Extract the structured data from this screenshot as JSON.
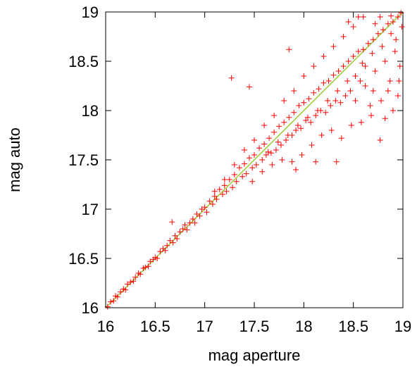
{
  "chart_data": {
    "type": "scatter",
    "xlabel": "mag aperture",
    "ylabel": "mag auto",
    "xlim": [
      16,
      19
    ],
    "ylim": [
      16,
      19
    ],
    "x_ticks": [
      "16",
      "16.5",
      "17",
      "17.5",
      "18",
      "18.5",
      "19"
    ],
    "y_ticks": [
      "16",
      "16.5",
      "17",
      "17.5",
      "18",
      "18.5",
      "19"
    ],
    "grid": false,
    "legend": "none",
    "marker": "+",
    "colors": {
      "points": "#ff0000",
      "reference_line": "#9acd32"
    },
    "reference_line": {
      "x": [
        16,
        19
      ],
      "y": [
        16,
        19
      ]
    },
    "series": [
      {
        "values": [
          [
            16.02,
            16.01
          ],
          [
            16.05,
            16.06
          ],
          [
            16.08,
            16.07
          ],
          [
            16.1,
            16.12
          ],
          [
            16.12,
            16.11
          ],
          [
            16.15,
            16.16
          ],
          [
            16.18,
            16.19
          ],
          [
            16.2,
            16.18
          ],
          [
            16.22,
            16.24
          ],
          [
            16.25,
            16.26
          ],
          [
            16.28,
            16.27
          ],
          [
            16.3,
            16.31
          ],
          [
            16.33,
            16.35
          ],
          [
            16.35,
            16.34
          ],
          [
            16.38,
            16.4
          ],
          [
            16.4,
            16.41
          ],
          [
            16.43,
            16.42
          ],
          [
            16.45,
            16.47
          ],
          [
            16.48,
            16.49
          ],
          [
            16.5,
            16.51
          ],
          [
            16.52,
            16.5
          ],
          [
            16.55,
            16.57
          ],
          [
            16.58,
            16.6
          ],
          [
            16.6,
            16.58
          ],
          [
            16.62,
            16.63
          ],
          [
            16.65,
            16.68
          ],
          [
            16.67,
            16.87
          ],
          [
            16.68,
            16.66
          ],
          [
            16.7,
            16.73
          ],
          [
            16.72,
            16.7
          ],
          [
            16.75,
            16.77
          ],
          [
            16.78,
            16.8
          ],
          [
            16.8,
            16.84
          ],
          [
            16.82,
            16.79
          ],
          [
            16.85,
            16.86
          ],
          [
            16.88,
            16.9
          ],
          [
            16.9,
            16.86
          ],
          [
            16.92,
            16.95
          ],
          [
            16.95,
            16.93
          ],
          [
            16.97,
            17.0
          ],
          [
            17.0,
            17.02
          ],
          [
            17.02,
            16.97
          ],
          [
            17.05,
            17.08
          ],
          [
            17.08,
            17.05
          ],
          [
            17.1,
            17.13
          ],
          [
            17.12,
            17.1
          ],
          [
            17.15,
            17.2
          ],
          [
            17.18,
            17.15
          ],
          [
            17.2,
            17.24
          ],
          [
            17.22,
            17.18
          ],
          [
            17.25,
            17.3
          ],
          [
            17.27,
            18.33
          ],
          [
            17.28,
            17.22
          ],
          [
            17.3,
            17.35
          ],
          [
            17.32,
            17.28
          ],
          [
            17.35,
            17.42
          ],
          [
            17.38,
            17.33
          ],
          [
            17.4,
            17.46
          ],
          [
            17.42,
            17.36
          ],
          [
            17.45,
            17.52
          ],
          [
            17.45,
            18.24
          ],
          [
            17.48,
            17.42
          ],
          [
            17.5,
            17.55
          ],
          [
            17.52,
            17.45
          ],
          [
            17.55,
            17.62
          ],
          [
            17.58,
            17.5
          ],
          [
            17.6,
            17.66
          ],
          [
            17.62,
            17.55
          ],
          [
            17.65,
            17.72
          ],
          [
            17.67,
            17.57
          ],
          [
            17.7,
            17.78
          ],
          [
            17.72,
            17.6
          ],
          [
            17.75,
            17.84
          ],
          [
            17.77,
            17.65
          ],
          [
            17.8,
            17.88
          ],
          [
            17.82,
            17.7
          ],
          [
            17.85,
            18.62
          ],
          [
            17.85,
            17.93
          ],
          [
            17.88,
            17.75
          ],
          [
            17.9,
            17.98
          ],
          [
            17.92,
            17.8
          ],
          [
            17.95,
            18.05
          ],
          [
            17.97,
            17.82
          ],
          [
            18.0,
            18.08
          ],
          [
            18.02,
            17.9
          ],
          [
            18.05,
            18.12
          ],
          [
            18.07,
            17.88
          ],
          [
            18.1,
            18.18
          ],
          [
            18.12,
            17.95
          ],
          [
            18.15,
            18.22
          ],
          [
            18.17,
            18.0
          ],
          [
            18.2,
            18.28
          ],
          [
            18.22,
            17.98
          ],
          [
            18.25,
            18.3
          ],
          [
            18.27,
            18.05
          ],
          [
            18.3,
            18.36
          ],
          [
            18.32,
            18.1
          ],
          [
            18.35,
            18.4
          ],
          [
            18.37,
            18.08
          ],
          [
            18.4,
            18.45
          ],
          [
            18.42,
            18.15
          ],
          [
            18.45,
            18.5
          ],
          [
            18.47,
            18.2
          ],
          [
            18.5,
            18.55
          ],
          [
            18.52,
            18.1
          ],
          [
            18.55,
            18.6
          ],
          [
            18.57,
            18.3
          ],
          [
            18.6,
            18.62
          ],
          [
            18.62,
            18.25
          ],
          [
            18.65,
            18.68
          ],
          [
            18.67,
            18.05
          ],
          [
            18.7,
            18.72
          ],
          [
            18.72,
            18.4
          ],
          [
            18.75,
            18.78
          ],
          [
            18.77,
            17.7
          ],
          [
            18.8,
            18.82
          ],
          [
            18.82,
            18.5
          ],
          [
            18.85,
            18.88
          ],
          [
            18.87,
            18.3
          ],
          [
            18.9,
            18.9
          ],
          [
            18.92,
            18.6
          ],
          [
            18.95,
            18.95
          ],
          [
            18.97,
            18.45
          ],
          [
            18.98,
            18.99
          ],
          [
            18.6,
            18.95
          ],
          [
            18.5,
            18.85
          ],
          [
            18.4,
            18.75
          ],
          [
            18.3,
            18.65
          ],
          [
            18.2,
            18.55
          ],
          [
            18.1,
            18.45
          ],
          [
            18.0,
            18.35
          ],
          [
            17.9,
            18.2
          ],
          [
            17.8,
            18.1
          ],
          [
            17.7,
            17.95
          ],
          [
            17.6,
            17.85
          ],
          [
            17.5,
            17.7
          ],
          [
            17.4,
            17.6
          ],
          [
            17.3,
            17.45
          ],
          [
            17.2,
            17.3
          ],
          [
            17.1,
            17.18
          ],
          [
            18.72,
            18.88
          ],
          [
            18.77,
            18.95
          ],
          [
            18.88,
            18.96
          ],
          [
            18.93,
            18.72
          ],
          [
            18.99,
            18.85
          ],
          [
            18.85,
            18.2
          ],
          [
            18.78,
            18.1
          ],
          [
            18.68,
            17.95
          ],
          [
            18.58,
            17.88
          ],
          [
            18.48,
            17.85
          ],
          [
            18.38,
            17.72
          ],
          [
            18.28,
            17.8
          ],
          [
            18.18,
            17.75
          ],
          [
            18.08,
            17.65
          ],
          [
            17.98,
            17.55
          ],
          [
            17.88,
            17.48
          ],
          [
            17.78,
            17.5
          ],
          [
            17.68,
            17.45
          ],
          [
            17.58,
            17.38
          ],
          [
            17.48,
            17.28
          ],
          [
            18.9,
            18.0
          ],
          [
            18.95,
            18.15
          ],
          [
            18.82,
            17.92
          ],
          [
            18.7,
            18.2
          ],
          [
            18.62,
            18.45
          ],
          [
            18.52,
            18.35
          ],
          [
            18.44,
            18.3
          ],
          [
            18.34,
            18.2
          ],
          [
            18.24,
            18.1
          ],
          [
            18.14,
            18.0
          ],
          [
            18.04,
            17.93
          ],
          [
            17.94,
            17.85
          ],
          [
            17.84,
            17.75
          ],
          [
            17.74,
            17.68
          ],
          [
            17.64,
            17.58
          ],
          [
            18.33,
            17.48
          ],
          [
            18.12,
            17.48
          ],
          [
            17.92,
            17.4
          ],
          [
            18.55,
            18.95
          ],
          [
            18.45,
            18.9
          ],
          [
            18.96,
            18.3
          ],
          [
            18.88,
            18.78
          ],
          [
            18.79,
            18.65
          ],
          [
            18.69,
            18.58
          ],
          [
            18.59,
            18.48
          ]
        ]
      }
    ]
  }
}
